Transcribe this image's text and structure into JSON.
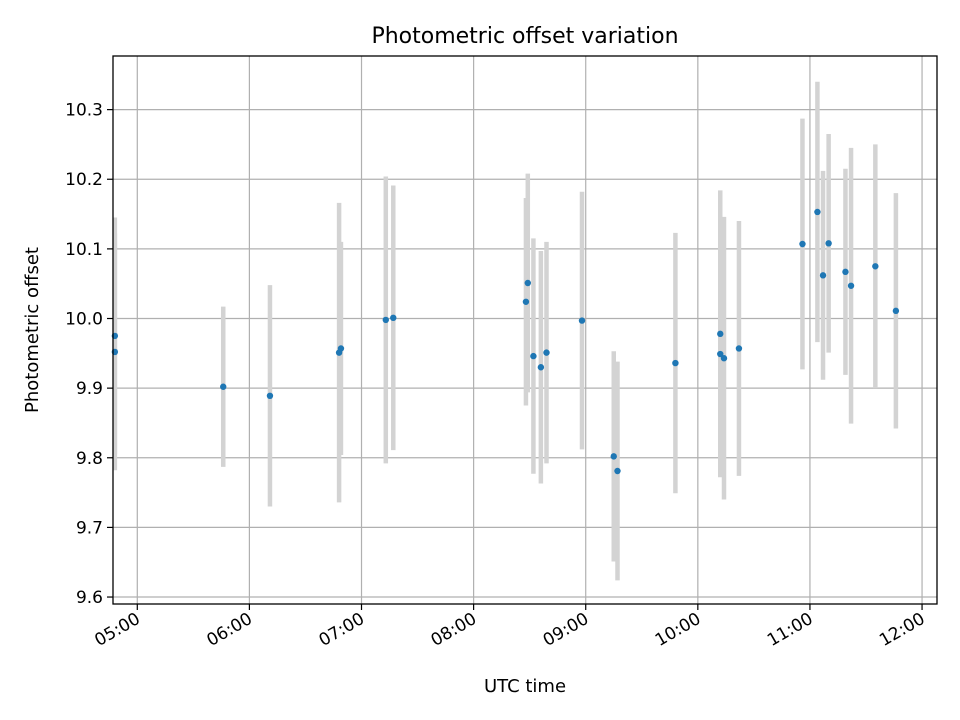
{
  "chart_data": {
    "type": "scatter",
    "title": "Photometric offset variation",
    "xlabel": "UTC time",
    "ylabel": "Photometric offset",
    "x_axis_type": "time",
    "xlim": [
      "04:47",
      "12:08"
    ],
    "ylim": [
      9.59,
      10.377
    ],
    "x_ticks": [
      "05:00",
      "06:00",
      "07:00",
      "08:00",
      "09:00",
      "10:00",
      "11:00",
      "12:00"
    ],
    "y_ticks": [
      9.6,
      9.7,
      9.8,
      9.9,
      10.0,
      10.1,
      10.2,
      10.3
    ],
    "y_tick_labels": [
      "9.6",
      "9.7",
      "9.8",
      "9.9",
      "10.0",
      "10.1",
      "10.2",
      "10.3"
    ],
    "grid": true,
    "x_tick_rotation_deg": 30,
    "marker_color": "#1f77b4",
    "errorbar_color": "#d3d3d3",
    "points": [
      {
        "x": "04:48",
        "y": 9.975,
        "yerr": 0.17
      },
      {
        "x": "04:48",
        "y": 9.952,
        "yerr": 0.17
      },
      {
        "x": "05:46",
        "y": 9.902,
        "yerr": 0.115
      },
      {
        "x": "06:11",
        "y": 9.889,
        "yerr": 0.159
      },
      {
        "x": "06:48",
        "y": 9.951,
        "yerr": 0.215
      },
      {
        "x": "06:49",
        "y": 9.957,
        "yerr": 0.153
      },
      {
        "x": "07:13",
        "y": 9.998,
        "yerr": 0.206
      },
      {
        "x": "07:17",
        "y": 10.001,
        "yerr": 0.19
      },
      {
        "x": "08:28",
        "y": 10.024,
        "yerr": 0.149
      },
      {
        "x": "08:29",
        "y": 10.051,
        "yerr": 0.157
      },
      {
        "x": "08:32",
        "y": 9.946,
        "yerr": 0.169
      },
      {
        "x": "08:36",
        "y": 9.93,
        "yerr": 0.167
      },
      {
        "x": "08:39",
        "y": 9.951,
        "yerr": 0.159
      },
      {
        "x": "08:58",
        "y": 9.997,
        "yerr": 0.185
      },
      {
        "x": "09:15",
        "y": 9.802,
        "yerr": 0.151
      },
      {
        "x": "09:17",
        "y": 9.781,
        "yerr": 0.157
      },
      {
        "x": "09:48",
        "y": 9.936,
        "yerr": 0.187
      },
      {
        "x": "10:12",
        "y": 9.978,
        "yerr": 0.206
      },
      {
        "x": "10:12",
        "y": 9.949,
        "yerr": 0.176
      },
      {
        "x": "10:14",
        "y": 9.943,
        "yerr": 0.203
      },
      {
        "x": "10:22",
        "y": 9.957,
        "yerr": 0.183
      },
      {
        "x": "10:56",
        "y": 10.107,
        "yerr": 0.18
      },
      {
        "x": "11:04",
        "y": 10.153,
        "yerr": 0.187
      },
      {
        "x": "11:07",
        "y": 10.062,
        "yerr": 0.15
      },
      {
        "x": "11:10",
        "y": 10.108,
        "yerr": 0.157
      },
      {
        "x": "11:19",
        "y": 10.067,
        "yerr": 0.148
      },
      {
        "x": "11:22",
        "y": 10.047,
        "yerr": 0.198
      },
      {
        "x": "11:35",
        "y": 10.075,
        "yerr": 0.175
      },
      {
        "x": "11:46",
        "y": 10.011,
        "yerr": 0.169
      }
    ]
  }
}
